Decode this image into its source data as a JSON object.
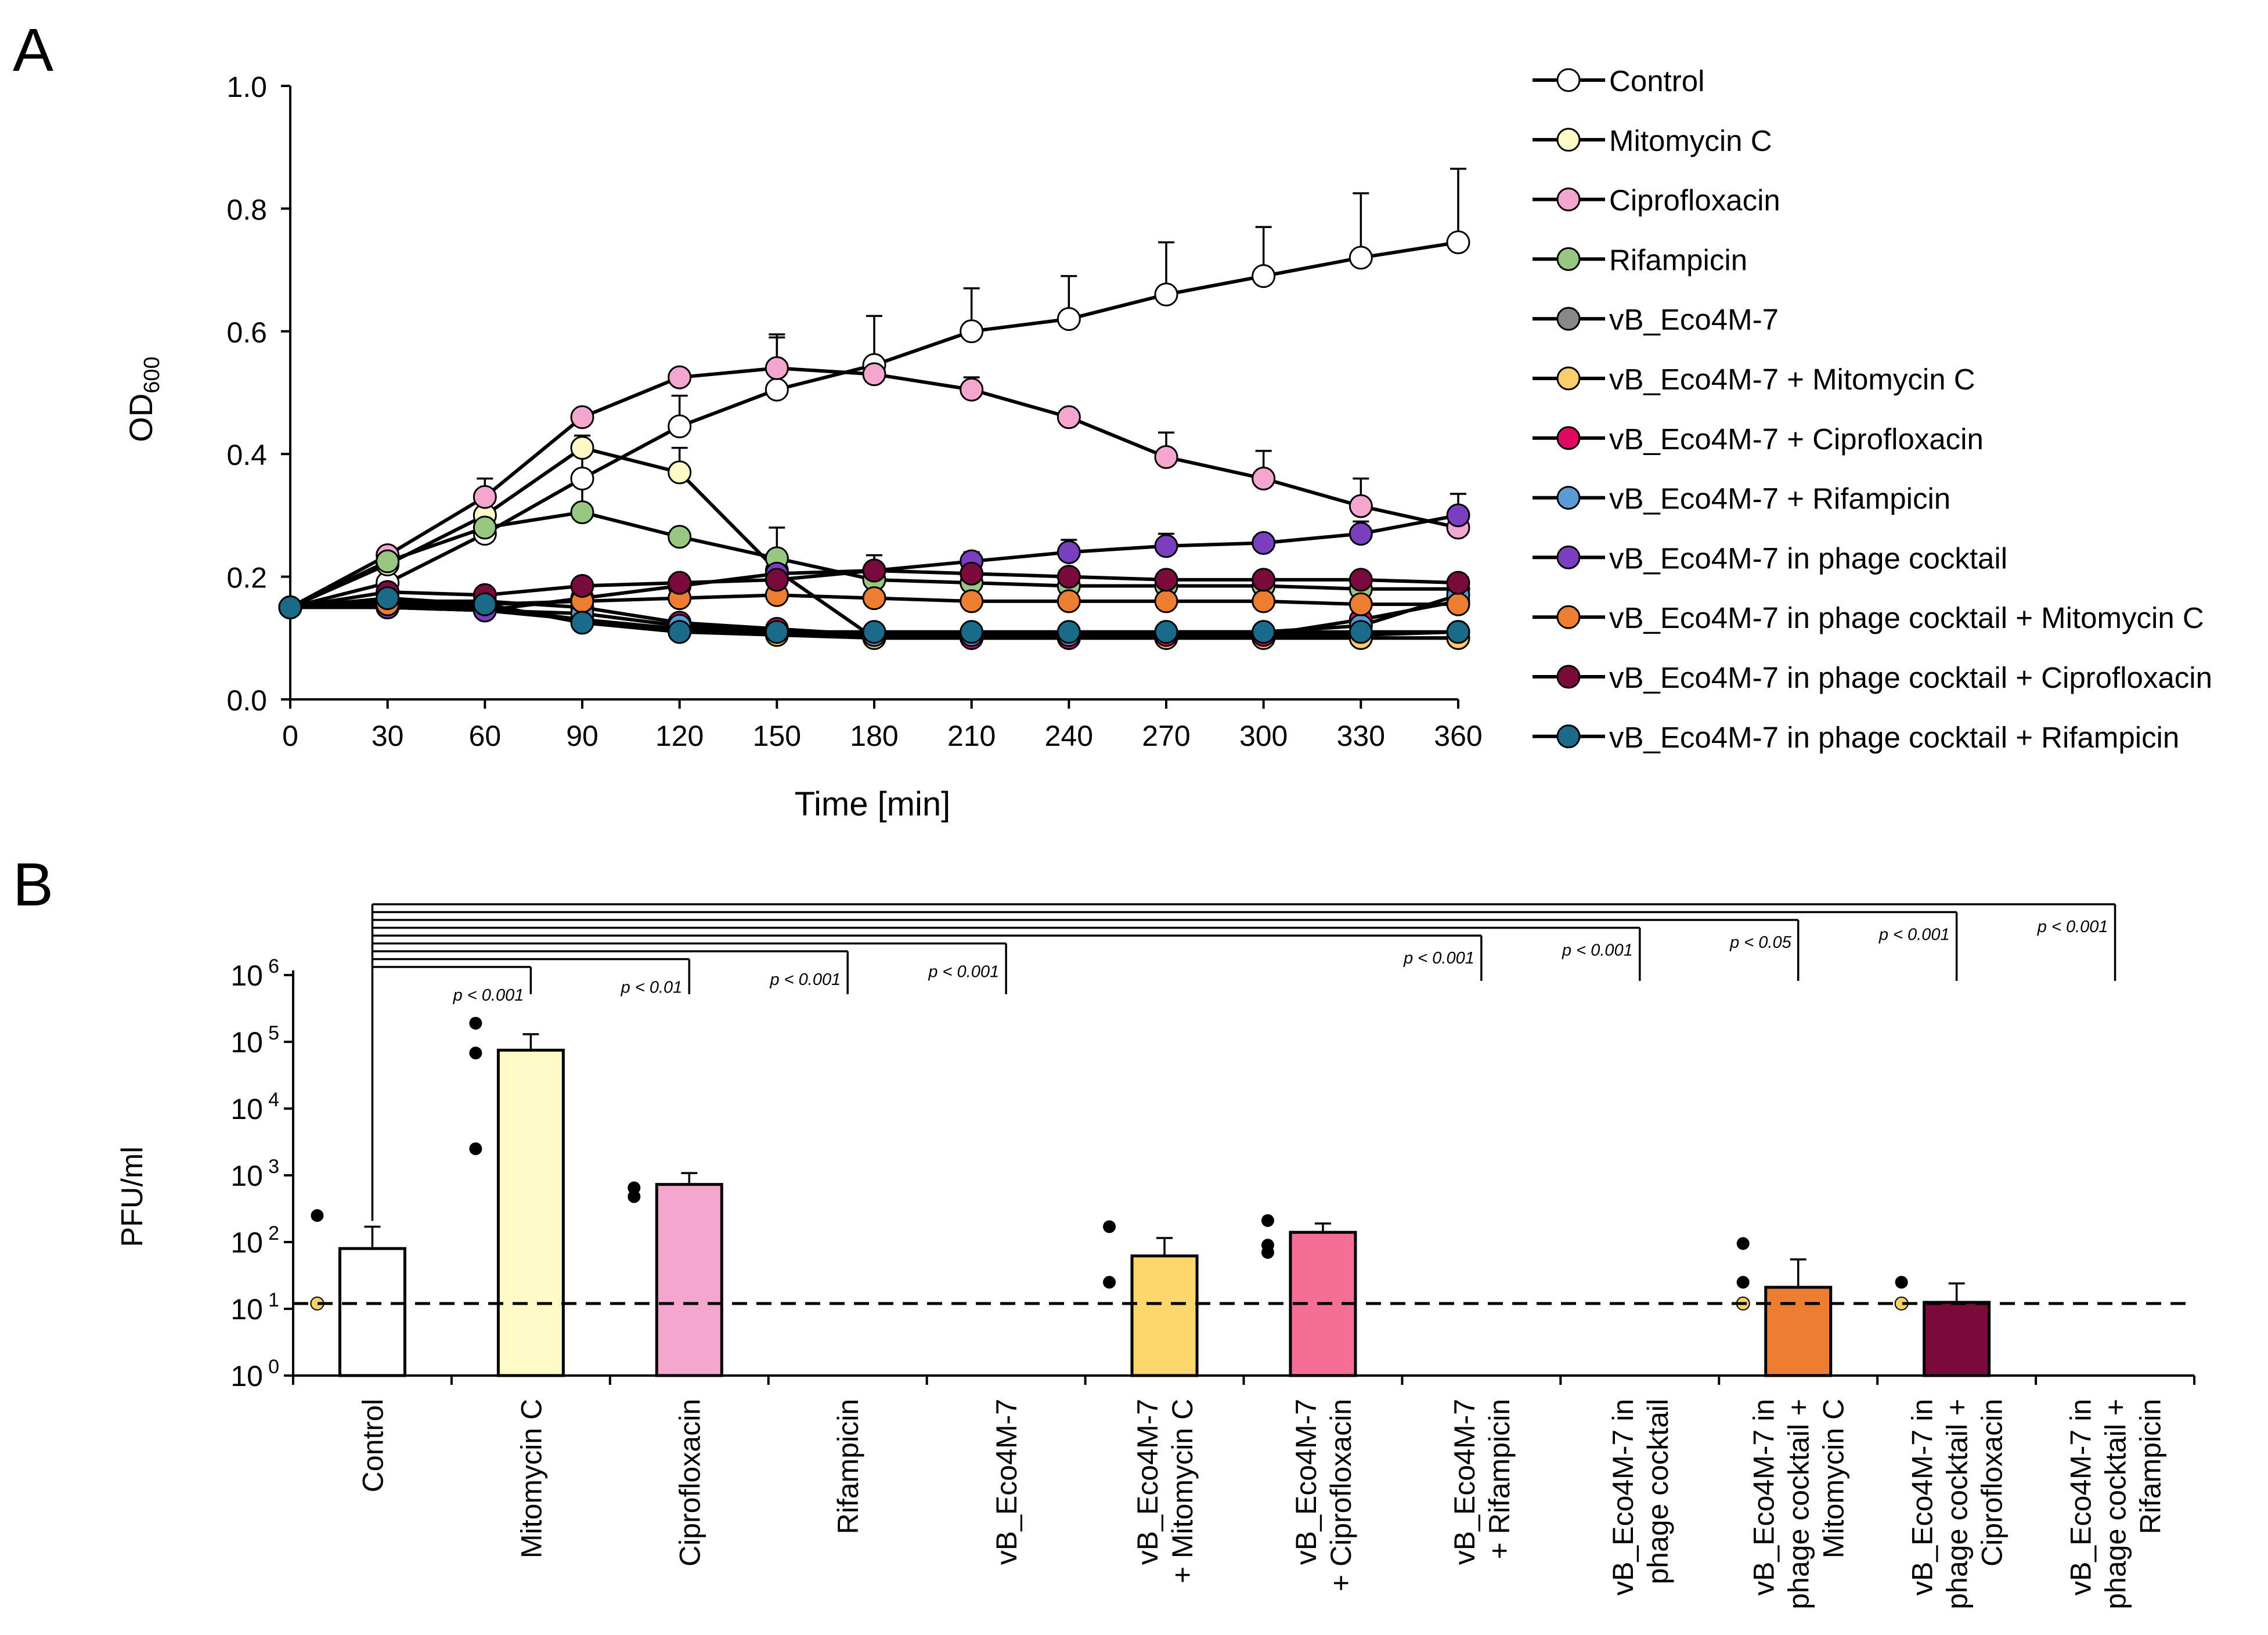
{
  "chart_data": [
    {
      "panel": "A",
      "type": "line",
      "xlabel": "Time [min]",
      "ylabel": "OD",
      "ylabel_sub": "600",
      "xlim": [
        0,
        360
      ],
      "ylim": [
        0,
        1.0
      ],
      "xticks": [
        "0",
        "30",
        "60",
        "90",
        "120",
        "150",
        "180",
        "210",
        "240",
        "270",
        "300",
        "330",
        "360"
      ],
      "yticks": [
        "0.0",
        "0.2",
        "0.4",
        "0.6",
        "0.8",
        "1.0"
      ],
      "x": [
        0,
        30,
        60,
        90,
        120,
        150,
        180,
        210,
        240,
        270,
        300,
        330,
        360
      ],
      "series": [
        {
          "name": "Control",
          "color": "#ffffff",
          "values": [
            0.15,
            0.19,
            0.27,
            0.36,
            0.445,
            0.505,
            0.545,
            0.6,
            0.62,
            0.66,
            0.69,
            0.72,
            0.745
          ],
          "err": [
            0,
            0,
            0.06,
            0.04,
            0.05,
            0.09,
            0.08,
            0.07,
            0.07,
            0.085,
            0.08,
            0.105,
            0.12
          ]
        },
        {
          "name": "Mitomycin C",
          "color": "#fffac6",
          "values": [
            0.15,
            0.22,
            0.3,
            0.41,
            0.37,
            0.21,
            0.1,
            0.1,
            0.1,
            0.1,
            0.1,
            0.1,
            0.1
          ],
          "err": [
            0,
            0,
            0,
            0.02,
            0.04,
            0,
            0,
            0,
            0,
            0,
            0,
            0,
            0
          ]
        },
        {
          "name": "Ciprofloxacin",
          "color": "#f5a6cf",
          "values": [
            0.15,
            0.235,
            0.33,
            0.46,
            0.525,
            0.54,
            0.53,
            0.505,
            0.46,
            0.395,
            0.36,
            0.315,
            0.28
          ],
          "err": [
            0,
            0,
            0,
            0,
            0,
            0.05,
            0.02,
            0.02,
            0,
            0.04,
            0.045,
            0.045,
            0.03
          ]
        },
        {
          "name": "Rifampicin",
          "color": "#97c780",
          "values": [
            0.15,
            0.225,
            0.28,
            0.305,
            0.265,
            0.23,
            0.195,
            0.19,
            0.185,
            0.185,
            0.185,
            0.18,
            0.18
          ],
          "err": [
            0,
            0,
            0.08,
            0.045,
            0,
            0.05,
            0,
            0,
            0,
            0,
            0,
            0,
            0
          ]
        },
        {
          "name": "vB_Eco4M-7",
          "color": "#888888",
          "values": [
            0.15,
            0.15,
            0.145,
            0.13,
            0.115,
            0.11,
            0.105,
            0.105,
            0.105,
            0.105,
            0.105,
            0.105,
            0.11
          ],
          "err": [
            0,
            0,
            0,
            0,
            0,
            0,
            0,
            0,
            0,
            0,
            0,
            0,
            0
          ]
        },
        {
          "name": "vB_Eco4M-7 + Mitomycin C",
          "color": "#fbcd6b",
          "values": [
            0.15,
            0.155,
            0.15,
            0.13,
            0.11,
            0.105,
            0.1,
            0.1,
            0.1,
            0.1,
            0.1,
            0.1,
            0.1
          ],
          "err": [
            0,
            0,
            0,
            0,
            0,
            0,
            0,
            0,
            0,
            0,
            0,
            0,
            0
          ]
        },
        {
          "name": "vB_Eco4M-7 + Ciprofloxacin",
          "color": "#e0095f",
          "values": [
            0.15,
            0.16,
            0.16,
            0.15,
            0.125,
            0.115,
            0.105,
            0.1,
            0.1,
            0.105,
            0.105,
            0.13,
            0.16
          ],
          "err": [
            0,
            0,
            0,
            0,
            0,
            0,
            0,
            0,
            0,
            0,
            0,
            0,
            0
          ]
        },
        {
          "name": "vB_Eco4M-7 + Rifampicin",
          "color": "#5b9bd5",
          "values": [
            0.15,
            0.15,
            0.145,
            0.14,
            0.12,
            0.11,
            0.105,
            0.105,
            0.105,
            0.11,
            0.11,
            0.12,
            0.17
          ],
          "err": [
            0,
            0,
            0,
            0,
            0,
            0,
            0,
            0,
            0,
            0,
            0,
            0,
            0
          ]
        },
        {
          "name": "vB_Eco4M-7 in phage cocktail",
          "color": "#7a3fbf",
          "values": [
            0.15,
            0.15,
            0.145,
            0.165,
            0.185,
            0.205,
            0.21,
            0.225,
            0.24,
            0.25,
            0.255,
            0.27,
            0.3
          ],
          "err": [
            0,
            0,
            0,
            0,
            0,
            0,
            0.025,
            0.015,
            0.02,
            0.02,
            0,
            0.02,
            0.035
          ]
        },
        {
          "name": "vB_Eco4M-7 in phage cocktail + Mitomycin C",
          "color": "#ed7d31",
          "values": [
            0.15,
            0.155,
            0.155,
            0.16,
            0.165,
            0.17,
            0.165,
            0.16,
            0.16,
            0.16,
            0.16,
            0.155,
            0.155
          ],
          "err": [
            0,
            0,
            0,
            0,
            0,
            0,
            0,
            0,
            0,
            0,
            0,
            0,
            0
          ]
        },
        {
          "name": "vB_Eco4M-7 in phage cocktail + Ciprofloxacin",
          "color": "#7b0a3c",
          "values": [
            0.15,
            0.175,
            0.17,
            0.185,
            0.19,
            0.195,
            0.21,
            0.205,
            0.2,
            0.195,
            0.195,
            0.195,
            0.19
          ],
          "err": [
            0,
            0,
            0,
            0,
            0,
            0,
            0,
            0,
            0,
            0,
            0,
            0,
            0
          ]
        },
        {
          "name": "vB_Eco4M-7 in phage cocktail + Rifampicin",
          "color": "#1a6a8a",
          "values": [
            0.15,
            0.165,
            0.155,
            0.125,
            0.11,
            0.11,
            0.11,
            0.11,
            0.11,
            0.11,
            0.11,
            0.11,
            0.11
          ],
          "err": [
            0,
            0,
            0,
            0,
            0,
            0,
            0,
            0,
            0,
            0,
            0,
            0,
            0
          ]
        }
      ]
    },
    {
      "panel": "B",
      "type": "bar",
      "ylabel": "PFU/ml",
      "yscale": "log",
      "ylim_exp": [
        0,
        6
      ],
      "ytick_exponents": [
        "0",
        "1",
        "2",
        "3",
        "4",
        "5",
        "6"
      ],
      "ytick_base": "10",
      "detection_limit": 12,
      "categories": [
        {
          "lines": [
            "Control"
          ],
          "value": 80,
          "err_top": 170,
          "color": "#ffffff",
          "points": [
            250
          ],
          "lod_point": true
        },
        {
          "lines": [
            "Mitomycin C"
          ],
          "value": 75000,
          "err_top": 130000,
          "color": "#fffac6",
          "points": [
            190000,
            68000,
            2500
          ],
          "lod_point": false
        },
        {
          "lines": [
            "Ciprofloxacin"
          ],
          "value": 730,
          "err_top": 1080,
          "color": "#f5a6cf",
          "points": [
            650,
            480
          ],
          "lod_point": false
        },
        {
          "lines": [
            "Rifampicin"
          ],
          "value": null,
          "err_top": null,
          "color": "#97c780",
          "points": [],
          "lod_point": false
        },
        {
          "lines": [
            "vB_Eco4M-7"
          ],
          "value": null,
          "err_top": null,
          "color": "#888888",
          "points": [],
          "lod_point": false
        },
        {
          "lines": [
            "vB_Eco4M-7",
            "+ Mitomycin C"
          ],
          "value": 62,
          "err_top": 115,
          "color": "#fdd76b",
          "points": [
            170,
            25
          ],
          "lod_point": false
        },
        {
          "lines": [
            "vB_Eco4M-7",
            "+ Ciprofloxacin"
          ],
          "value": 140,
          "err_top": 190,
          "color": "#f46e95",
          "points": [
            210,
            90,
            70
          ],
          "lod_point": false
        },
        {
          "lines": [
            "vB_Eco4M-7",
            "+ Rifampicin"
          ],
          "value": null,
          "err_top": null,
          "color": "#5b9bd5",
          "points": [],
          "lod_point": false
        },
        {
          "lines": [
            "vB_Eco4M-7 in",
            "phage cocktail"
          ],
          "value": null,
          "err_top": null,
          "color": "#7a3fbf",
          "points": [],
          "lod_point": false
        },
        {
          "lines": [
            "vB_Eco4M-7 in",
            "phage cocktail +",
            "Mitomycin C"
          ],
          "value": 21,
          "err_top": 55,
          "color": "#ed7d31",
          "points": [
            95,
            25
          ],
          "lod_point": true
        },
        {
          "lines": [
            "vB_Eco4M-7 in",
            "phage cocktail +",
            "Ciprofloxacin"
          ],
          "value": 12.5,
          "err_top": 24,
          "color": "#7b0a3c",
          "points": [
            25
          ],
          "lod_point": true
        },
        {
          "lines": [
            "vB_Eco4M-7 in",
            "phage cocktail +",
            "Rifampicin"
          ],
          "value": null,
          "err_top": null,
          "color": "#1a6a8a",
          "points": [],
          "lod_point": false
        }
      ],
      "comparisons": [
        {
          "to": 1,
          "label": "p < 0.001"
        },
        {
          "to": 2,
          "label": "p < 0.01"
        },
        {
          "to": 3,
          "label": "p < 0.001"
        },
        {
          "to": 4,
          "label": "p < 0.001"
        },
        {
          "to": 7,
          "label": "p < 0.001"
        },
        {
          "to": 8,
          "label": "p < 0.001"
        },
        {
          "to": 9,
          "label": "p < 0.05"
        },
        {
          "to": 10,
          "label": "p < 0.001"
        },
        {
          "to": 11,
          "label": "p < 0.001"
        }
      ]
    }
  ],
  "labels": {
    "panel_a": "A",
    "panel_b": "B",
    "p_letter": "p"
  }
}
